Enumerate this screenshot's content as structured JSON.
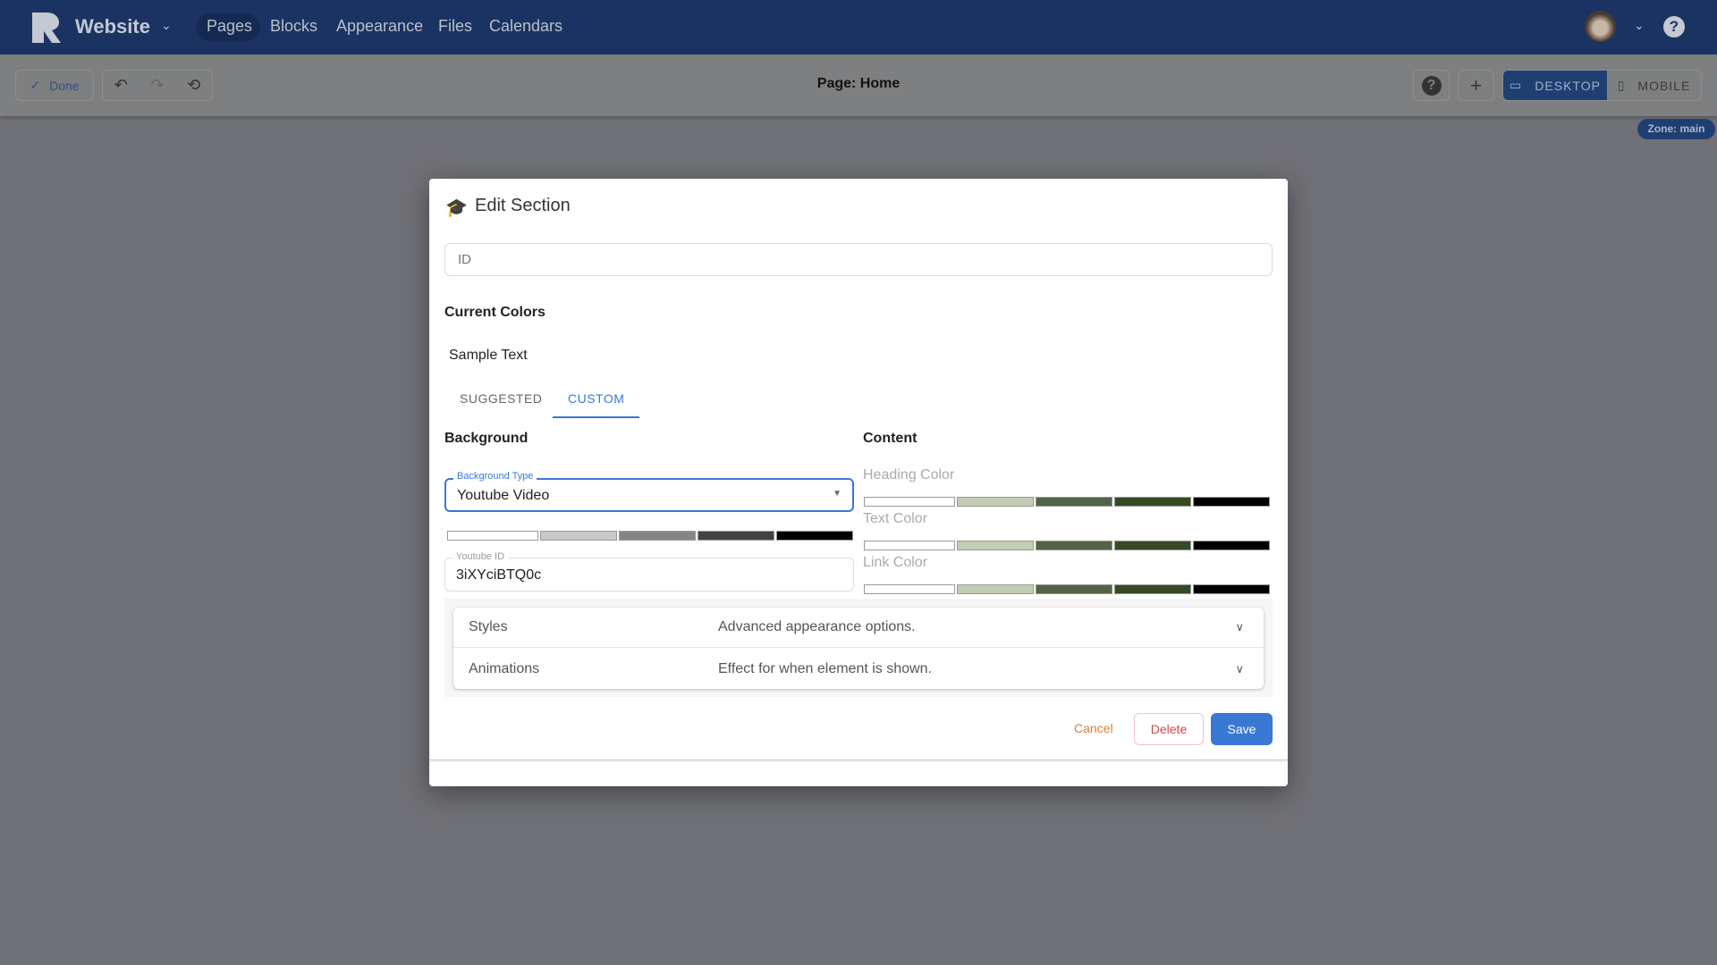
{
  "nav": {
    "site_name": "Website",
    "items": [
      "Pages",
      "Blocks",
      "Appearance",
      "Files",
      "Calendars"
    ],
    "active": "Pages"
  },
  "toolbar": {
    "done": "Done",
    "page_title": "Page: Home",
    "desktop": "DESKTOP",
    "mobile": "MOBILE",
    "zone": "Zone: main"
  },
  "modal": {
    "title": "Edit Section",
    "id_placeholder": "ID",
    "current_colors": "Current Colors",
    "sample_text": "Sample Text",
    "tabs": [
      "SUGGESTED",
      "CUSTOM"
    ],
    "active_tab": "CUSTOM",
    "background": {
      "heading": "Background",
      "type_label": "Background Type",
      "type_value": "Youtube Video",
      "swatches": [
        "#ffffff",
        "#c8c8c8",
        "#858585",
        "#424242",
        "#000000"
      ],
      "youtube_label": "Youtube ID",
      "youtube_value": "3iXYciBTQ0c"
    },
    "content": {
      "heading": "Content",
      "heading_color": "Heading Color",
      "text_color": "Text Color",
      "link_color": "Link Color",
      "swatches": [
        "#ffffff",
        "#c3ccb4",
        "#526347",
        "#354a25",
        "#000000"
      ]
    },
    "panels": [
      {
        "title": "Styles",
        "desc": "Advanced appearance options."
      },
      {
        "title": "Animations",
        "desc": "Effect for when element is shown."
      }
    ],
    "buttons": {
      "cancel": "Cancel",
      "delete": "Delete",
      "save": "Save"
    }
  },
  "colors": {
    "primary": "#3a78d6",
    "nav": "#1b3362",
    "cancel": "#e07b39",
    "delete": "#d04a4a"
  }
}
